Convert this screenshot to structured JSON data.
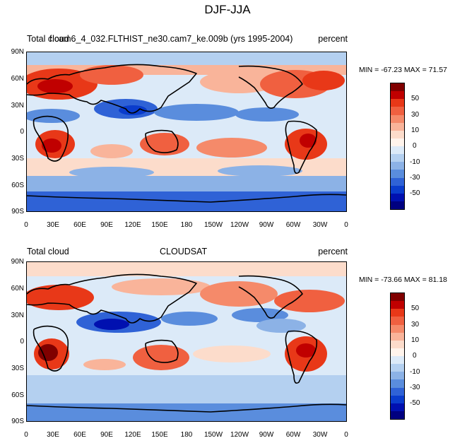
{
  "title": "DJF-JJA",
  "lat_ticks": [
    "90N",
    "60N",
    "30N",
    "0",
    "30S",
    "60S",
    "90S"
  ],
  "lon_ticks": [
    "0",
    "30E",
    "60E",
    "90E",
    "120E",
    "150E",
    "180",
    "150W",
    "120W",
    "90W",
    "60W",
    "30W",
    "0"
  ],
  "panels": [
    {
      "left_label": "Total cloud",
      "center_label": "f.cam6_4_032.FLTHIST_ne30.cam7_ke.009b (yrs 1995-2004)",
      "right_label": "percent",
      "stats": "MIN = -67.23 MAX =  71.57"
    },
    {
      "left_label": "Total cloud",
      "center_label": "CLOUDSAT",
      "right_label": "percent",
      "stats": "MIN = -73.66 MAX =  81.18"
    }
  ],
  "colorbar": {
    "labels": [
      "50",
      "30",
      "10",
      "0",
      "-10",
      "-30",
      "-50"
    ],
    "colors": [
      "#800000",
      "#c00000",
      "#e83818",
      "#f06040",
      "#f58a6a",
      "#f9b49a",
      "#fcdccb",
      "#fff4ec",
      "#dceaf8",
      "#b4d0f0",
      "#8cb2e6",
      "#5a8ddd",
      "#2f62d6",
      "#0a3ccc",
      "#0010b0",
      "#000080"
    ]
  }
}
